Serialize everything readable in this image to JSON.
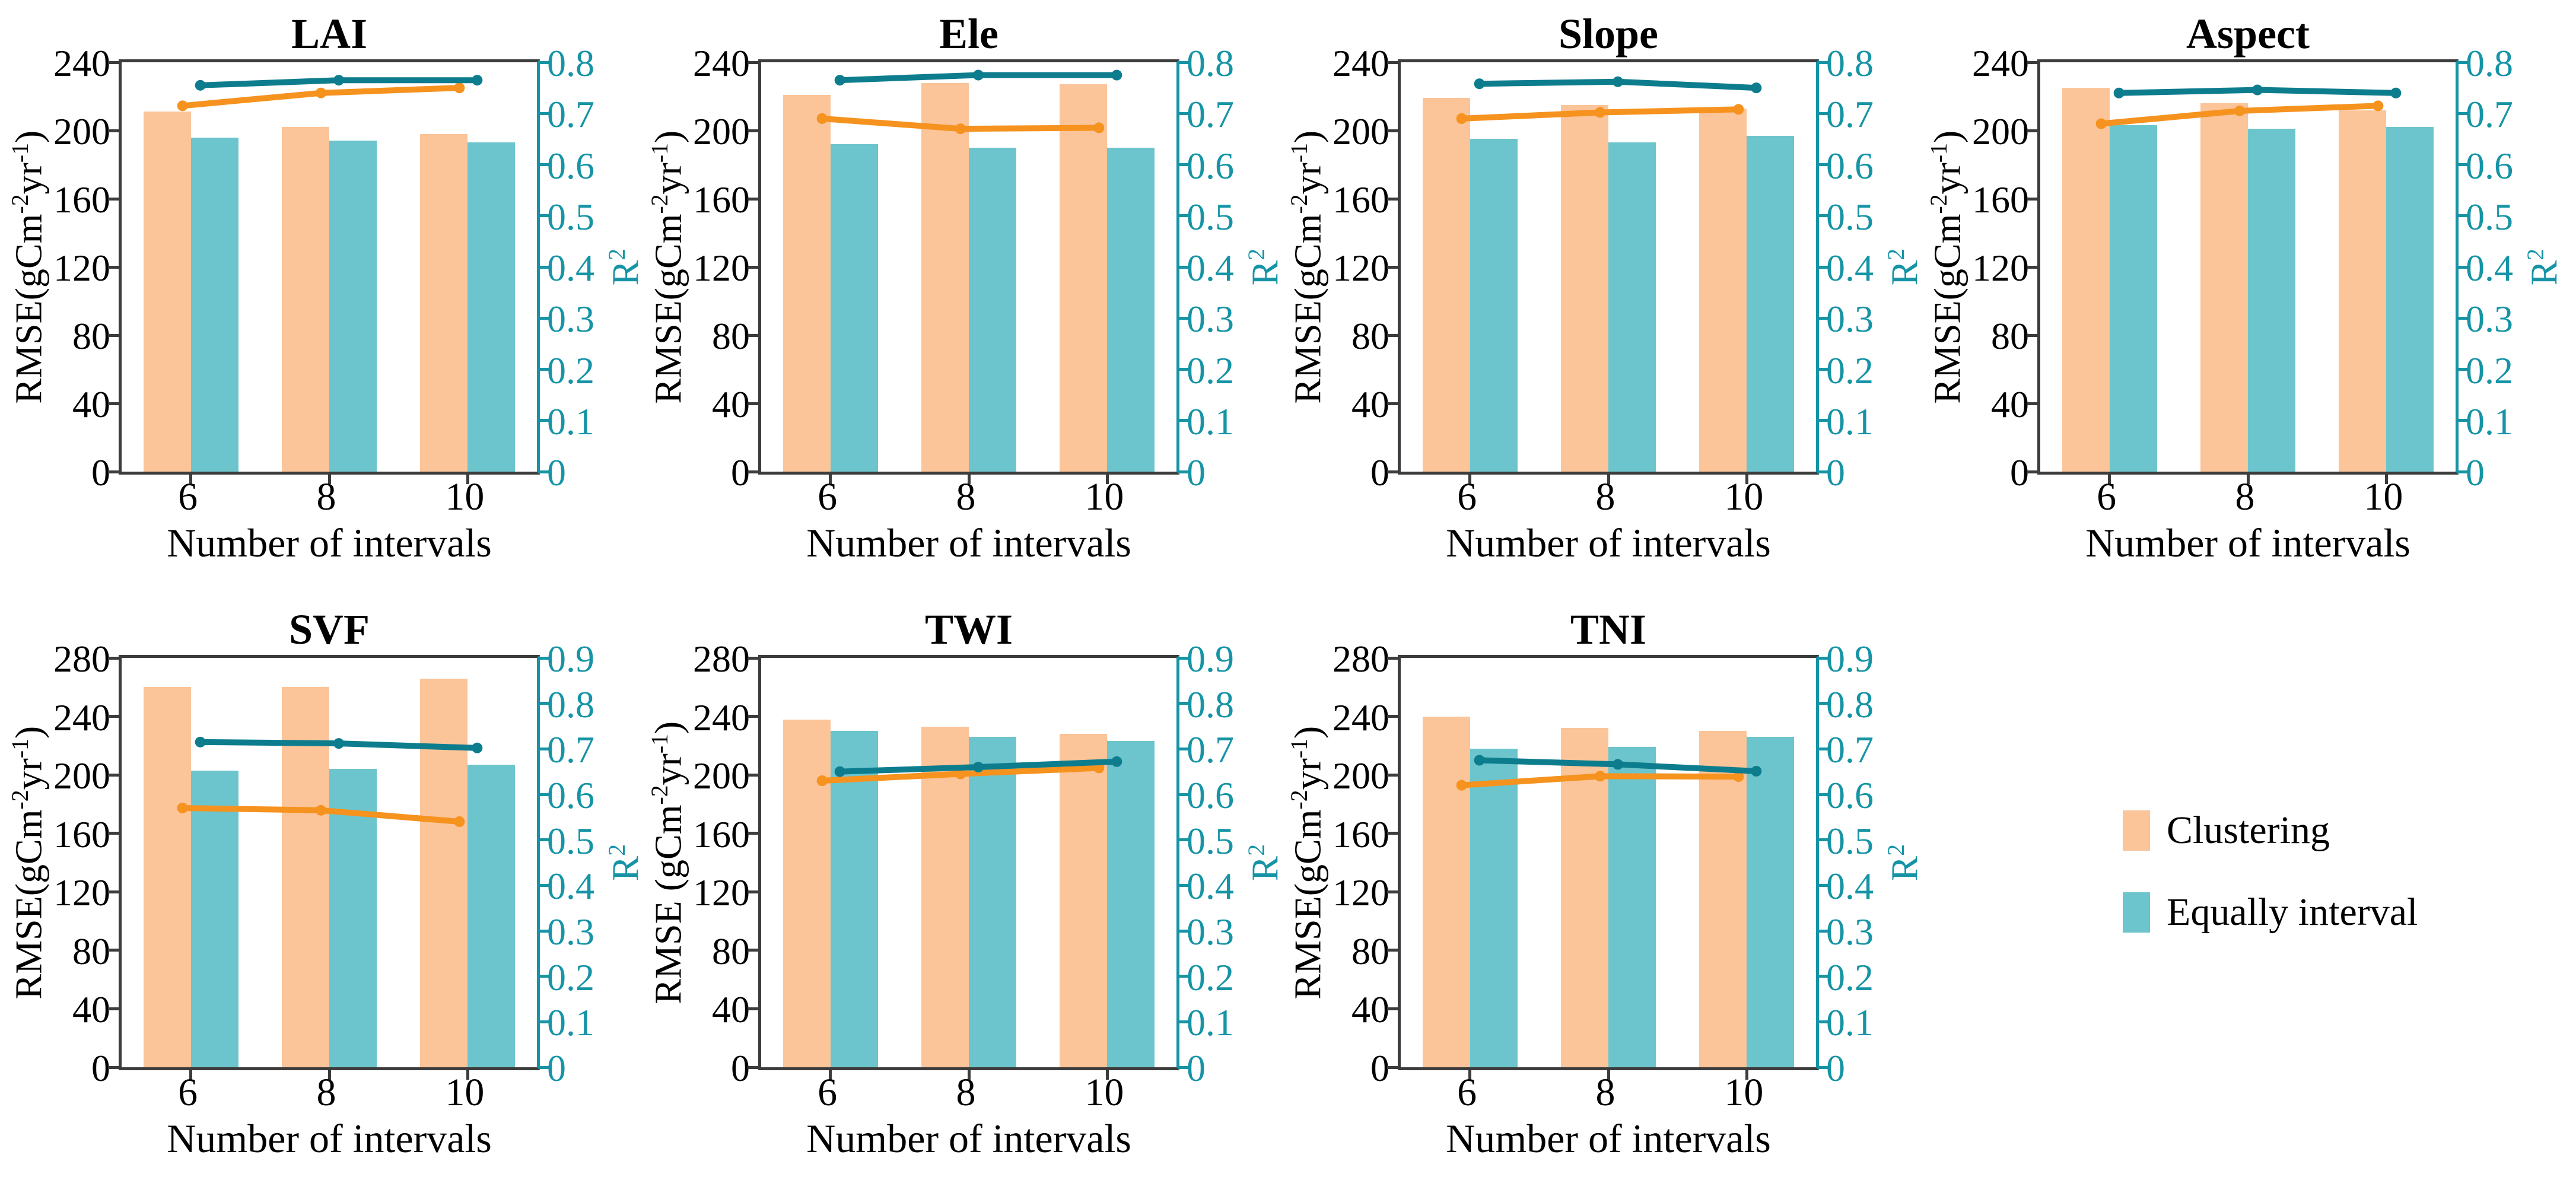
{
  "figure": {
    "description_visible_text": "Seven dual-axis bar/line charts comparing Clustering vs Equally interval binning",
    "x_axis_label": "Number of intervals"
  },
  "colors": {
    "bar_clustering": "#FBC499",
    "bar_equally_interval": "#6CC5CC",
    "line_clustering": "#F6921E",
    "line_equally_interval": "#0D7D8E",
    "right_axis": "#1694A6",
    "spine": "#3C3C3C",
    "text": "#000000"
  },
  "legend": {
    "items": [
      {
        "label": "Clustering",
        "swatch_color_key": "bar_clustering"
      },
      {
        "label": "Equally interval",
        "swatch_color_key": "bar_equally_interval"
      }
    ]
  },
  "chart_data": [
    {
      "type": "bar",
      "subtype": "bar-line-dual-axis",
      "title": "LAI",
      "categories": [
        "6",
        "8",
        "10"
      ],
      "xlabel": "Number of intervals",
      "ylabel_left": "RMSE(gCm⁻²yr⁻¹)",
      "ylabel_right": "R²",
      "ylim_left": [
        0,
        240
      ],
      "ytick_step_left": 40,
      "ylim_right": [
        0,
        0.8
      ],
      "ytick_step_right": 0.1,
      "grid": false,
      "series": [
        {
          "name": "Clustering",
          "type": "bar",
          "axis": "left",
          "values": [
            211,
            202,
            198
          ]
        },
        {
          "name": "Equally interval",
          "type": "bar",
          "axis": "left",
          "values": [
            196,
            194,
            193
          ]
        },
        {
          "name": "Clustering",
          "type": "line",
          "axis": "right",
          "values": [
            0.715,
            0.74,
            0.75
          ]
        },
        {
          "name": "Equally interval",
          "type": "line",
          "axis": "right",
          "values": [
            0.755,
            0.765,
            0.765
          ]
        }
      ]
    },
    {
      "type": "bar",
      "subtype": "bar-line-dual-axis",
      "title": "Ele",
      "categories": [
        "6",
        "8",
        "10"
      ],
      "xlabel": "Number of intervals",
      "ylabel_left": "RMSE(gCm⁻²yr⁻¹)",
      "ylabel_right": "R²",
      "ylim_left": [
        0,
        240
      ],
      "ytick_step_left": 40,
      "ylim_right": [
        0,
        0.8
      ],
      "ytick_step_right": 0.1,
      "grid": false,
      "series": [
        {
          "name": "Clustering",
          "type": "bar",
          "axis": "left",
          "values": [
            221,
            228,
            227
          ]
        },
        {
          "name": "Equally interval",
          "type": "bar",
          "axis": "left",
          "values": [
            192,
            190,
            190
          ]
        },
        {
          "name": "Clustering",
          "type": "line",
          "axis": "right",
          "values": [
            0.69,
            0.67,
            0.672
          ]
        },
        {
          "name": "Equally interval",
          "type": "line",
          "axis": "right",
          "values": [
            0.765,
            0.775,
            0.775
          ]
        }
      ]
    },
    {
      "type": "bar",
      "subtype": "bar-line-dual-axis",
      "title": "Slope",
      "categories": [
        "6",
        "8",
        "10"
      ],
      "xlabel": "Number of intervals",
      "ylabel_left": "RMSE(gCm⁻²yr⁻¹)",
      "ylabel_right": "R²",
      "ylim_left": [
        0,
        240
      ],
      "ytick_step_left": 40,
      "ylim_right": [
        0,
        0.8
      ],
      "ytick_step_right": 0.1,
      "grid": false,
      "series": [
        {
          "name": "Clustering",
          "type": "bar",
          "axis": "left",
          "values": [
            219,
            215,
            213
          ]
        },
        {
          "name": "Equally interval",
          "type": "bar",
          "axis": "left",
          "values": [
            195,
            193,
            197
          ]
        },
        {
          "name": "Clustering",
          "type": "line",
          "axis": "right",
          "values": [
            0.69,
            0.702,
            0.708
          ]
        },
        {
          "name": "Equally interval",
          "type": "line",
          "axis": "right",
          "values": [
            0.758,
            0.762,
            0.75
          ]
        }
      ]
    },
    {
      "type": "bar",
      "subtype": "bar-line-dual-axis",
      "title": "Aspect",
      "categories": [
        "6",
        "8",
        "10"
      ],
      "xlabel": "Number of intervals",
      "ylabel_left": "RMSE(gCm⁻²yr⁻¹)",
      "ylabel_right": "R²",
      "ylim_left": [
        0,
        240
      ],
      "ytick_step_left": 40,
      "ylim_right": [
        0,
        0.8
      ],
      "ytick_step_right": 0.1,
      "grid": false,
      "series": [
        {
          "name": "Clustering",
          "type": "bar",
          "axis": "left",
          "values": [
            225,
            216,
            212
          ]
        },
        {
          "name": "Equally interval",
          "type": "bar",
          "axis": "left",
          "values": [
            203,
            201,
            202
          ]
        },
        {
          "name": "Clustering",
          "type": "line",
          "axis": "right",
          "values": [
            0.68,
            0.705,
            0.715
          ]
        },
        {
          "name": "Equally interval",
          "type": "line",
          "axis": "right",
          "values": [
            0.74,
            0.746,
            0.74
          ]
        }
      ]
    },
    {
      "type": "bar",
      "subtype": "bar-line-dual-axis",
      "title": "SVF",
      "categories": [
        "6",
        "8",
        "10"
      ],
      "xlabel": "Number of intervals",
      "ylabel_left": "RMSE(gCm⁻²yr⁻¹)",
      "ylabel_right": "R²",
      "ylim_left": [
        0,
        280
      ],
      "ytick_step_left": 40,
      "ylim_right": [
        0,
        0.9
      ],
      "ytick_step_right": 0.1,
      "grid": false,
      "series": [
        {
          "name": "Clustering",
          "type": "bar",
          "axis": "left",
          "values": [
            260,
            260,
            266
          ]
        },
        {
          "name": "Equally interval",
          "type": "bar",
          "axis": "left",
          "values": [
            203,
            204,
            207
          ]
        },
        {
          "name": "Clustering",
          "type": "line",
          "axis": "right",
          "values": [
            0.57,
            0.565,
            0.54
          ]
        },
        {
          "name": "Equally interval",
          "type": "line",
          "axis": "right",
          "values": [
            0.715,
            0.712,
            0.702
          ]
        }
      ]
    },
    {
      "type": "bar",
      "subtype": "bar-line-dual-axis",
      "title": "TWI",
      "categories": [
        "6",
        "8",
        "10"
      ],
      "xlabel": "Number of intervals",
      "ylabel_left": "RMSE (gCm⁻²yr⁻¹)",
      "ylabel_right": "R²",
      "ylim_left": [
        0,
        280
      ],
      "ytick_step_left": 40,
      "ylim_right": [
        0,
        0.9
      ],
      "ytick_step_right": 0.1,
      "grid": false,
      "series": [
        {
          "name": "Clustering",
          "type": "bar",
          "axis": "left",
          "values": [
            238,
            233,
            228
          ]
        },
        {
          "name": "Equally interval",
          "type": "bar",
          "axis": "left",
          "values": [
            230,
            226,
            223
          ]
        },
        {
          "name": "Clustering",
          "type": "line",
          "axis": "right",
          "values": [
            0.63,
            0.645,
            0.658
          ]
        },
        {
          "name": "Equally interval",
          "type": "line",
          "axis": "right",
          "values": [
            0.65,
            0.66,
            0.672
          ]
        }
      ]
    },
    {
      "type": "bar",
      "subtype": "bar-line-dual-axis",
      "title": "TNI",
      "categories": [
        "6",
        "8",
        "10"
      ],
      "xlabel": "Number of intervals",
      "ylabel_left": "RMSE(gCm⁻²yr⁻¹)",
      "ylabel_right": "R²",
      "ylim_left": [
        0,
        280
      ],
      "ytick_step_left": 40,
      "ylim_right": [
        0,
        0.9
      ],
      "ytick_step_right": 0.1,
      "grid": false,
      "series": [
        {
          "name": "Clustering",
          "type": "bar",
          "axis": "left",
          "values": [
            240,
            232,
            230
          ]
        },
        {
          "name": "Equally interval",
          "type": "bar",
          "axis": "left",
          "values": [
            218,
            219,
            226
          ]
        },
        {
          "name": "Clustering",
          "type": "line",
          "axis": "right",
          "values": [
            0.62,
            0.64,
            0.639
          ]
        },
        {
          "name": "Equally interval",
          "type": "line",
          "axis": "right",
          "values": [
            0.675,
            0.666,
            0.651
          ]
        }
      ]
    }
  ]
}
